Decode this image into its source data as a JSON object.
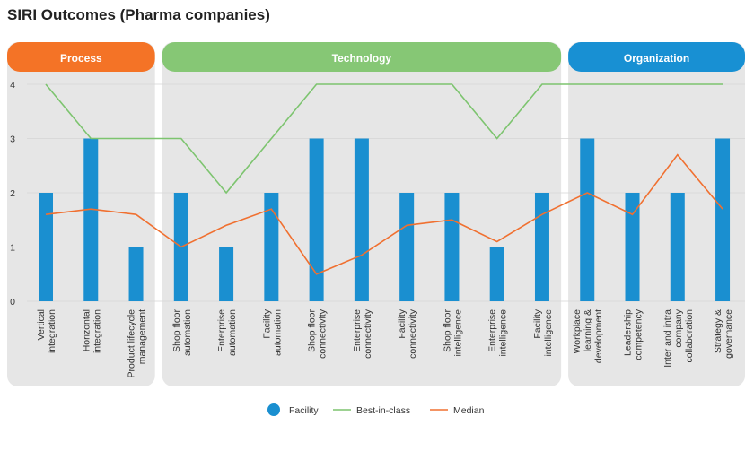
{
  "chart_data": {
    "type": "bar-line",
    "title": "SIRI Outcomes (Pharma companies)",
    "categories": [
      "Vertical\nintegration",
      "Horizontal\nintegration",
      "Product lifecycle\nmanagement",
      "Shop floor\nautomation",
      "Enterprise\nautomation",
      "Facility\nautomation",
      "Shop floor\nconnectivity",
      "Enterprise\nconnectivity",
      "Facility\nconnectivity",
      "Shop floor\nintelligence",
      "Enterprise\nintelligence",
      "Facility\nintelligence",
      "Workplace\nlearning &\ndevelopment",
      "Leadership\ncompetency",
      "Inter and intra\ncompany\ncollaboration",
      "Strategy &\ngovernance"
    ],
    "groups": [
      {
        "label": "Process",
        "color": "#f47326",
        "first": 0,
        "last": 2
      },
      {
        "label": "Technology",
        "color": "#86c775",
        "first": 3,
        "last": 11
      },
      {
        "label": "Organization",
        "color": "#1890d3",
        "first": 12,
        "last": 15
      }
    ],
    "series": [
      {
        "name": "Facility",
        "kind": "bar",
        "color": "#1a8fd0",
        "values": [
          2,
          3,
          1,
          2,
          1,
          2,
          3,
          3,
          2,
          2,
          1,
          2,
          3,
          2,
          2,
          3
        ]
      },
      {
        "name": "Best-in-class",
        "kind": "line",
        "color": "#7dc46f",
        "values": [
          4,
          3,
          3,
          3,
          2,
          3,
          4,
          4,
          4,
          4,
          3,
          4,
          4,
          4,
          4,
          4
        ]
      },
      {
        "name": "Median",
        "kind": "line",
        "color": "#f07030",
        "values": [
          1.6,
          1.7,
          1.6,
          1.0,
          1.4,
          1.7,
          0.5,
          0.85,
          1.4,
          1.5,
          1.1,
          1.6,
          2.0,
          1.6,
          2.7,
          1.7
        ]
      }
    ],
    "ylim": [
      0,
      4
    ],
    "yticks": [
      0,
      1,
      2,
      3,
      4
    ],
    "grid": true
  }
}
